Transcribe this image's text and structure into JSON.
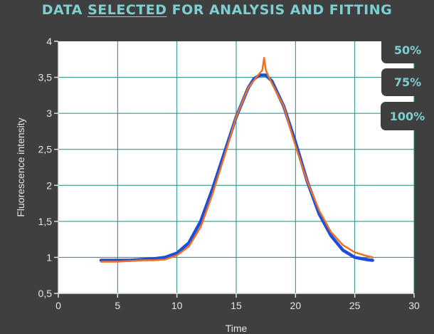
{
  "title_parts": {
    "before": "DATA ",
    "underlined": "SELECTED",
    "after": " FOR ANALYSIS AND FITTING"
  },
  "zoom_buttons": [
    {
      "label": "50%"
    },
    {
      "label": "75%"
    },
    {
      "label": "100%"
    }
  ],
  "colors": {
    "background": "#3f3f3f",
    "title": "#7ecfd1",
    "grid": "#1e8a86",
    "series_measured": "#1d4ed8",
    "series_fit": "#f07020"
  },
  "chart_data": {
    "type": "line",
    "xlabel": "Time",
    "ylabel": "Fluorescence intensity",
    "xlim": [
      0,
      30
    ],
    "ylim": [
      0.5,
      4
    ],
    "xticks": [
      0,
      5,
      10,
      15,
      20,
      25,
      30
    ],
    "yticks": [
      0.5,
      1,
      1.5,
      2,
      2.5,
      3,
      3.5,
      4
    ],
    "xtick_labels": [
      "0",
      "5",
      "10",
      "15",
      "20",
      "25",
      "30"
    ],
    "ytick_labels": [
      "0,5",
      "1",
      "1,5",
      "2",
      "2,5",
      "3",
      "3,5",
      "4"
    ],
    "grid": true,
    "series": [
      {
        "color": "#1d4ed8",
        "x": [
          3.6,
          5,
          6,
          7,
          8,
          9,
          10,
          11,
          12,
          13,
          14,
          15,
          16,
          16.5,
          17,
          17.5,
          18,
          19,
          20,
          21,
          22,
          23,
          24,
          25,
          26,
          26.5
        ],
        "y": [
          0.96,
          0.96,
          0.96,
          0.97,
          0.98,
          1.0,
          1.06,
          1.2,
          1.5,
          1.95,
          2.45,
          2.95,
          3.35,
          3.48,
          3.53,
          3.53,
          3.45,
          3.1,
          2.6,
          2.05,
          1.6,
          1.3,
          1.1,
          1.0,
          0.97,
          0.96
        ]
      },
      {
        "color": "#f07020",
        "x": [
          3.6,
          5,
          6,
          7,
          8,
          9,
          10,
          11,
          12,
          13,
          14,
          15,
          16,
          16.8,
          17.2,
          17.35,
          17.5,
          17.7,
          18,
          19,
          20,
          21,
          22,
          23,
          24,
          25,
          26,
          26.5
        ],
        "y": [
          0.94,
          0.94,
          0.95,
          0.96,
          0.96,
          0.97,
          1.03,
          1.15,
          1.42,
          1.88,
          2.4,
          2.95,
          3.35,
          3.52,
          3.6,
          3.77,
          3.6,
          3.52,
          3.42,
          3.1,
          2.55,
          2.05,
          1.65,
          1.35,
          1.17,
          1.07,
          1.02,
          1.0
        ]
      }
    ]
  }
}
